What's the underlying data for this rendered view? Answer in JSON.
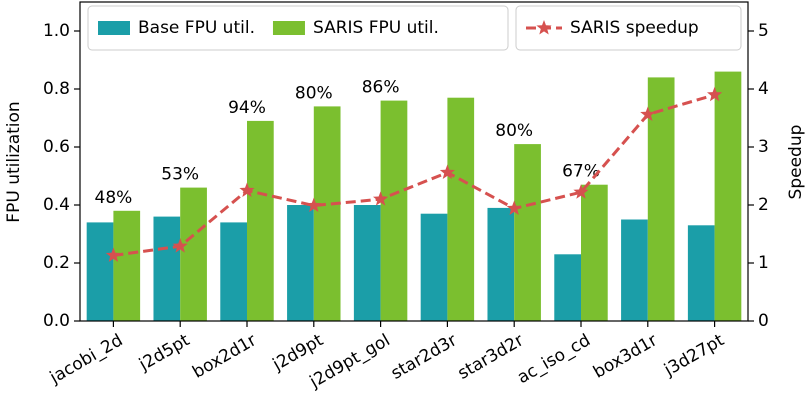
{
  "chart_data": {
    "type": "bar",
    "categories": [
      "jacobi_2d",
      "j2d5pt",
      "box2d1r",
      "j2d9pt",
      "j2d9pt_gol",
      "star2d3r",
      "star3d2r",
      "ac_iso_cd",
      "box3d1r",
      "j3d27pt"
    ],
    "series": [
      {
        "name": "Base FPU util.",
        "color": "#1b9ea8",
        "values": [
          0.34,
          0.36,
          0.34,
          0.4,
          0.4,
          0.37,
          0.39,
          0.23,
          0.35,
          0.33
        ]
      },
      {
        "name": "SARIS FPU util.",
        "color": "#7bbf2f",
        "values": [
          0.38,
          0.46,
          0.69,
          0.74,
          0.76,
          0.77,
          0.61,
          0.47,
          0.84,
          0.86
        ]
      },
      {
        "name": "SARIS speedup",
        "color": "#d6514f",
        "type": "line",
        "axis": "y2",
        "values": [
          1.13,
          1.29,
          2.25,
          1.99,
          2.1,
          2.56,
          1.94,
          2.22,
          3.56,
          3.9
        ]
      }
    ],
    "annotations": [
      {
        "category": "jacobi_2d",
        "text": "48%"
      },
      {
        "category": "j2d5pt",
        "text": "53%"
      },
      {
        "category": "box2d1r",
        "text": "94%"
      },
      {
        "category": "j2d9pt",
        "text": "80%"
      },
      {
        "category": "j2d9pt_gol",
        "text": "86%"
      },
      {
        "category": "star3d2r",
        "text": "80%"
      },
      {
        "category": "ac_iso_cd",
        "text": "67%"
      }
    ],
    "ylabel": "FPU utilization",
    "y2label": "Speedup",
    "ylim": [
      0,
      1.1
    ],
    "yticks": [
      0.0,
      0.2,
      0.4,
      0.6,
      0.8,
      1.0
    ],
    "y2lim": [
      0,
      5.5
    ],
    "y2ticks": [
      0,
      1,
      2,
      3,
      4,
      5
    ],
    "grid": false
  }
}
